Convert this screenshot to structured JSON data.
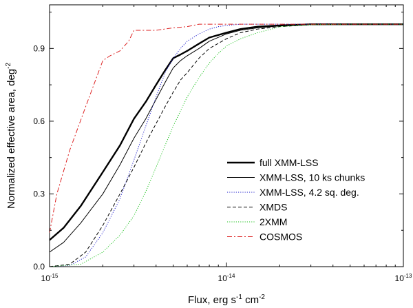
{
  "chart_data": {
    "type": "line",
    "title": "",
    "xlabel": {
      "base": "Flux, erg s",
      "exp1": "-1",
      "mid": " cm",
      "exp2": "-2"
    },
    "ylabel": {
      "base": "Normalized effective area, deg",
      "exp": "-2"
    },
    "xscale": "log",
    "xlim": [
      1e-15,
      1e-13
    ],
    "ylim": [
      0.0,
      1.08
    ],
    "x_ticks": [
      {
        "value": 1e-15,
        "base": "10",
        "exp": "-15"
      },
      {
        "value": 1e-14,
        "base": "10",
        "exp": "-14"
      },
      {
        "value": 1e-13,
        "base": "10",
        "exp": "-13"
      }
    ],
    "y_ticks": [
      {
        "value": 0.0,
        "label": "0.0"
      },
      {
        "value": 0.3,
        "label": "0.3"
      },
      {
        "value": 0.6,
        "label": "0.6"
      },
      {
        "value": 0.9,
        "label": "0.9"
      }
    ],
    "legend_position": "lower-right",
    "series": [
      {
        "name": "full XMM-LSS",
        "color": "#000000",
        "dash": "solid",
        "width": 2.4,
        "x": [
          1e-15,
          1.2e-15,
          1.5e-15,
          2e-15,
          2.5e-15,
          3e-15,
          3.5e-15,
          4e-15,
          4.5e-15,
          5e-15,
          5.5e-15,
          6e-15,
          7e-15,
          8e-15,
          1e-14,
          1.2e-14,
          1.5e-14,
          2e-14,
          3e-14,
          5e-14,
          1e-13
        ],
        "y": [
          0.11,
          0.16,
          0.25,
          0.39,
          0.5,
          0.61,
          0.68,
          0.75,
          0.81,
          0.86,
          0.875,
          0.89,
          0.92,
          0.945,
          0.965,
          0.98,
          0.99,
          0.995,
          1.0,
          1.0,
          1.0
        ]
      },
      {
        "name": "XMM-LSS, 10 ks chunks",
        "color": "#000000",
        "dash": "solid",
        "width": 1.0,
        "x": [
          1e-15,
          1.2e-15,
          1.5e-15,
          2e-15,
          2.5e-15,
          3e-15,
          3.5e-15,
          4e-15,
          4.5e-15,
          5e-15,
          5.5e-15,
          6e-15,
          7e-15,
          8e-15,
          1e-14,
          1.2e-14,
          1.5e-14,
          2e-14,
          3e-14,
          5e-14,
          1e-13
        ],
        "y": [
          0.06,
          0.1,
          0.18,
          0.3,
          0.42,
          0.53,
          0.61,
          0.69,
          0.76,
          0.82,
          0.85,
          0.87,
          0.9,
          0.93,
          0.96,
          0.975,
          0.985,
          0.993,
          0.998,
          1.0,
          1.0
        ]
      },
      {
        "name": "XMM-LSS, 4.2 sq. deg.",
        "color": "#1f1fcc",
        "dash": "dot",
        "width": 1.0,
        "x": [
          1e-15,
          1.3e-15,
          1.6e-15,
          2e-15,
          2.5e-15,
          3e-15,
          3.5e-15,
          4e-15,
          4.5e-15,
          5e-15,
          5.5e-15,
          6e-15,
          7e-15,
          8e-15,
          9e-15,
          1e-14,
          1.2e-14,
          1.5e-14,
          2e-14,
          3e-14,
          1e-13
        ],
        "y": [
          0.0,
          0.005,
          0.04,
          0.14,
          0.28,
          0.44,
          0.58,
          0.7,
          0.8,
          0.86,
          0.9,
          0.93,
          0.96,
          0.98,
          0.99,
          0.995,
          1.0,
          1.0,
          1.0,
          1.0,
          1.0
        ]
      },
      {
        "name": "XMDS",
        "color": "#000000",
        "dash": "dash",
        "width": 1.0,
        "x": [
          1e-15,
          1.3e-15,
          1.6e-15,
          2e-15,
          2.5e-15,
          3e-15,
          3.5e-15,
          4e-15,
          4.5e-15,
          5e-15,
          5.5e-15,
          6e-15,
          7e-15,
          8e-15,
          1e-14,
          1.2e-14,
          1.5e-14,
          2e-14,
          3e-14,
          5e-14,
          1e-13
        ],
        "y": [
          0.0,
          0.01,
          0.06,
          0.17,
          0.3,
          0.41,
          0.51,
          0.59,
          0.66,
          0.72,
          0.77,
          0.8,
          0.86,
          0.9,
          0.94,
          0.965,
          0.98,
          0.99,
          0.998,
          1.0,
          1.0
        ]
      },
      {
        "name": "2XMM",
        "color": "#22c422",
        "dash": "dot",
        "width": 1.0,
        "x": [
          1e-15,
          1.5e-15,
          2e-15,
          2.5e-15,
          3e-15,
          3.5e-15,
          4e-15,
          4.5e-15,
          5e-15,
          6e-15,
          7e-15,
          8e-15,
          9e-15,
          1e-14,
          1.2e-14,
          1.5e-14,
          1.8e-14,
          2e-14,
          3e-14,
          5e-14,
          1e-13
        ],
        "y": [
          0.0,
          0.01,
          0.06,
          0.13,
          0.21,
          0.31,
          0.41,
          0.5,
          0.58,
          0.7,
          0.78,
          0.84,
          0.88,
          0.91,
          0.94,
          0.965,
          0.98,
          0.99,
          0.998,
          1.0,
          1.0
        ]
      },
      {
        "name": "COSMOS",
        "color": "#dd2222",
        "dash": "dashdot",
        "width": 1.0,
        "x": [
          1e-15,
          1.1e-15,
          1.3e-15,
          1.6e-15,
          2e-15,
          2.2e-15,
          2.5e-15,
          2.8e-15,
          3e-15,
          4e-15,
          5e-15,
          6e-15,
          7e-15,
          1e-14,
          2e-14,
          5e-14,
          1e-13
        ],
        "y": [
          0.14,
          0.3,
          0.48,
          0.66,
          0.85,
          0.87,
          0.89,
          0.93,
          0.975,
          0.975,
          0.985,
          0.99,
          1.0,
          1.0,
          1.0,
          1.0,
          1.0
        ]
      }
    ]
  }
}
